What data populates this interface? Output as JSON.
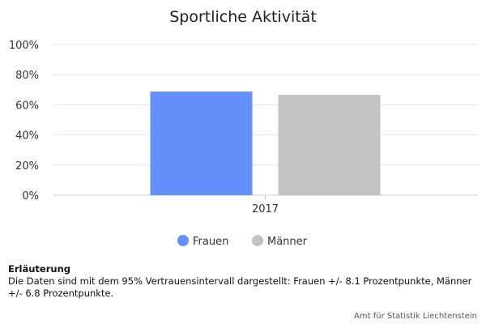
{
  "chart_data": {
    "type": "bar",
    "title": "Sportliche Aktivität",
    "categories": [
      "2017"
    ],
    "series": [
      {
        "name": "Frauen",
        "values": [
          68.8
        ],
        "color": "#6590fb"
      },
      {
        "name": "Männer",
        "values": [
          66.6
        ],
        "color": "#c3c3c3"
      }
    ],
    "ylim": [
      0,
      100
    ],
    "yticks": [
      0,
      20,
      40,
      60,
      80,
      100
    ],
    "ytick_suffix": "%",
    "xlabel": "",
    "ylabel": "",
    "grid": true,
    "legend_position": "bottom-center"
  },
  "note": {
    "title": "Erläuterung",
    "text": "Die Daten sind mit dem 95% Vertrauensintervall dargestellt: Frauen +/- 8.1 Prozentpunkte, Männer +/- 6.8 Prozentpunkte."
  },
  "credits": "Amt für Statistik Liechtenstein"
}
